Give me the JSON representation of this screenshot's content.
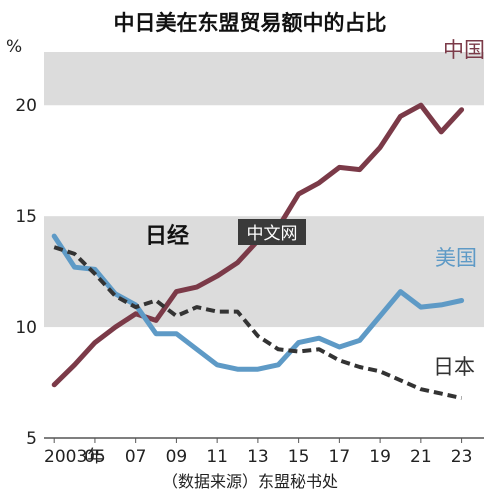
{
  "watermark": {
    "logo_text": "日经",
    "site_text": "中文网"
  },
  "chart_data": {
    "type": "line",
    "title": "中日美在东盟贸易额中的占比",
    "unit": "%",
    "source": "（数据来源）东盟秘书处",
    "x": [
      2003,
      2004,
      2005,
      2006,
      2007,
      2008,
      2009,
      2010,
      2011,
      2012,
      2013,
      2014,
      2015,
      2016,
      2017,
      2018,
      2019,
      2020,
      2021,
      2022,
      2023
    ],
    "x_tick_labels": [
      {
        "x": 2003,
        "label": "2003年"
      },
      {
        "x": 2005,
        "label": "05"
      },
      {
        "x": 2007,
        "label": "07"
      },
      {
        "x": 2009,
        "label": "09"
      },
      {
        "x": 2011,
        "label": "11"
      },
      {
        "x": 2013,
        "label": "13"
      },
      {
        "x": 2015,
        "label": "15"
      },
      {
        "x": 2017,
        "label": "17"
      },
      {
        "x": 2019,
        "label": "19"
      },
      {
        "x": 2021,
        "label": "21"
      },
      {
        "x": 2023,
        "label": "23"
      }
    ],
    "y_ticks": [
      5,
      10,
      15,
      20
    ],
    "ylim": [
      5,
      22.4
    ],
    "xlim": [
      2002.5,
      2024.1
    ],
    "bands": [
      [
        20,
        22.4
      ],
      [
        10,
        15
      ]
    ],
    "series": [
      {
        "name": "中国",
        "color": "#7b3a48",
        "dash": "solid",
        "values": [
          7.4,
          8.3,
          9.3,
          10.0,
          10.6,
          10.3,
          11.6,
          11.8,
          12.3,
          12.9,
          13.9,
          14.5,
          16.0,
          16.5,
          17.2,
          17.1,
          18.1,
          19.5,
          20.0,
          18.8,
          19.8
        ]
      },
      {
        "name": "美国",
        "color": "#5e9ac6",
        "dash": "solid",
        "values": [
          14.1,
          12.7,
          12.6,
          11.5,
          11.0,
          9.7,
          9.7,
          9.0,
          8.3,
          8.1,
          8.1,
          8.3,
          9.3,
          9.5,
          9.1,
          9.4,
          10.5,
          11.6,
          10.9,
          11.0,
          11.2
        ]
      },
      {
        "name": "日本",
        "color": "#333333",
        "dash": "dashed",
        "values": [
          13.6,
          13.3,
          12.4,
          11.4,
          10.9,
          11.2,
          10.5,
          10.9,
          10.7,
          10.7,
          9.6,
          9.0,
          8.9,
          9.0,
          8.5,
          8.2,
          8.0,
          7.6,
          7.2,
          7.0,
          6.8
        ]
      }
    ]
  }
}
